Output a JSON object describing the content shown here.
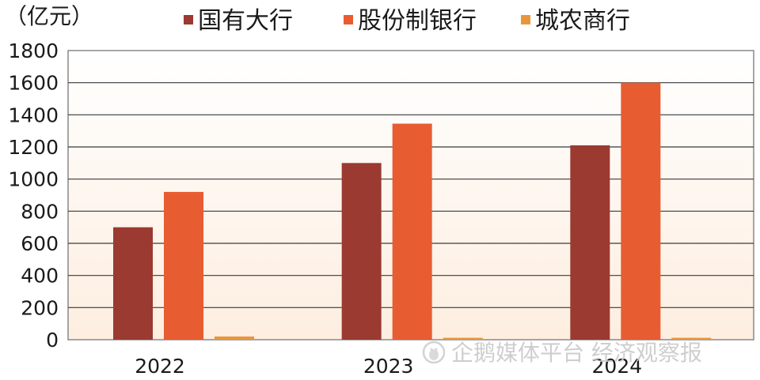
{
  "chart_data": {
    "type": "bar",
    "unit": "（亿元）",
    "categories": [
      "2022",
      "2023",
      "2024"
    ],
    "series": [
      {
        "name": "国有大行",
        "values": [
          700,
          1100,
          1210
        ],
        "color": "#9b3a30"
      },
      {
        "name": "股份制银行",
        "values": [
          920,
          1345,
          1600
        ],
        "color": "#e85c32"
      },
      {
        "name": "城农商行",
        "values": [
          20,
          12,
          12
        ],
        "color": "#e8963c"
      }
    ],
    "ylim": [
      0,
      1800
    ],
    "yticks": [
      0,
      200,
      400,
      600,
      800,
      1000,
      1200,
      1400,
      1600,
      1800
    ],
    "grid": true,
    "legend_position": "top",
    "background_gradient": [
      "#fdeee0",
      "#ffffff"
    ]
  },
  "watermark": {
    "text": "企鹅媒体平台 经济观察报",
    "icon": "penguin-icon"
  }
}
